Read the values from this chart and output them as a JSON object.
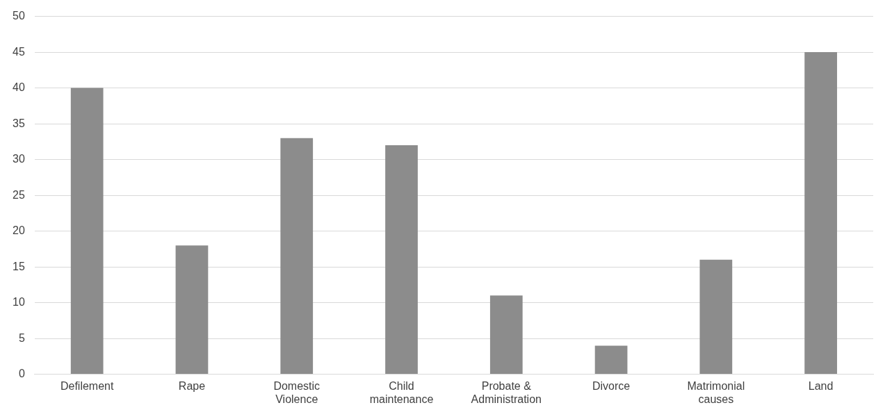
{
  "chart_data": {
    "type": "bar",
    "categories": [
      "Defilement",
      "Rape",
      "Domestic Violence",
      "Child maintenance",
      "Probate & Administration",
      "Divorce",
      "Matrimonial causes",
      "Land"
    ],
    "values": [
      40,
      18,
      33,
      32,
      11,
      4,
      16,
      45
    ],
    "color": "#8c8c8c",
    "ylim": [
      0,
      50
    ],
    "yticks": [
      0,
      5,
      10,
      15,
      20,
      25,
      30,
      35,
      40,
      45,
      50
    ],
    "grid": "y",
    "legend": false
  }
}
